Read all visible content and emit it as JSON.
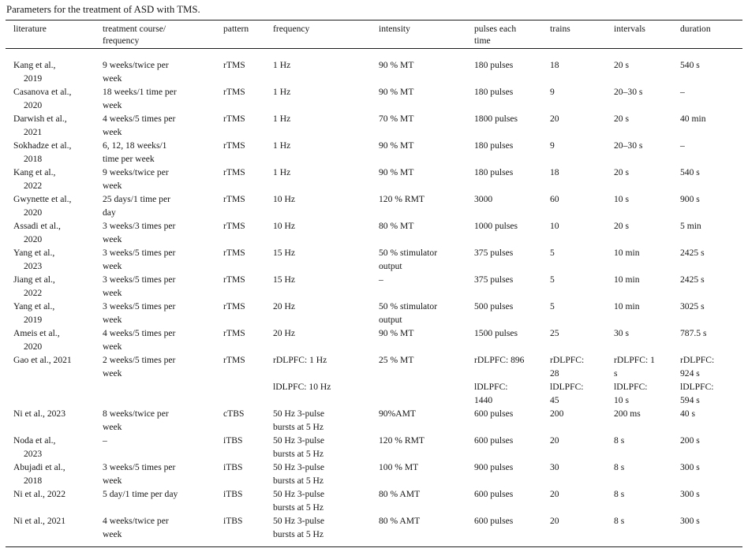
{
  "caption": "Parameters for the treatment of ASD with TMS.",
  "table": {
    "column_keys": [
      "literature",
      "course",
      "pattern",
      "frequency",
      "intensity",
      "pulses",
      "trains",
      "intervals",
      "duration"
    ],
    "columns": [
      "literature",
      "treatment course/\nfrequency",
      "pattern",
      "frequency",
      "intensity",
      "pulses each\ntime",
      "trains",
      "intervals",
      "duration"
    ],
    "rows": [
      [
        "Kang et al.,\n2019",
        "9 weeks/twice per\nweek",
        "rTMS",
        "1 Hz",
        "90 % MT",
        "180 pulses",
        "18",
        "20 s",
        "540 s"
      ],
      [
        "Casanova et al.,\n2020",
        "18 weeks/1 time per\nweek",
        "rTMS",
        "1 Hz",
        "90 % MT",
        "180 pulses",
        "9",
        "20–30 s",
        "–"
      ],
      [
        "Darwish et al.,\n2021",
        "4 weeks/5 times per\nweek",
        "rTMS",
        "1 Hz",
        "70 % MT",
        "1800 pulses",
        "20",
        "20 s",
        "40 min"
      ],
      [
        "Sokhadze et al.,\n2018",
        "6, 12, 18 weeks/1\ntime per week",
        "rTMS",
        "1 Hz",
        "90 % MT",
        "180 pulses",
        "9",
        "20–30 s",
        "–"
      ],
      [
        "Kang et al.,\n2022",
        "9 weeks/twice per\nweek",
        "rTMS",
        "1 Hz",
        "90 % MT",
        "180 pulses",
        "18",
        "20 s",
        "540 s"
      ],
      [
        "Gwynette et al.,\n2020",
        "25 days/1 time per\nday",
        "rTMS",
        "10 Hz",
        "120 % RMT",
        "3000",
        "60",
        "10 s",
        "900 s"
      ],
      [
        "Assadi et al.,\n2020",
        "3 weeks/3 times per\nweek",
        "rTMS",
        "10 Hz",
        "80 % MT",
        "1000 pulses",
        "10",
        "20 s",
        "5 min"
      ],
      [
        "Yang et al.,\n2023",
        "3 weeks/5 times per\nweek",
        "rTMS",
        "15 Hz",
        "50 % stimulator\noutput",
        "375 pulses",
        "5",
        "10 min",
        "2425 s"
      ],
      [
        "Jiang et al.,\n2022",
        "3 weeks/5 times per\nweek",
        "rTMS",
        "15 Hz",
        "–",
        "375 pulses",
        "5",
        "10 min",
        "2425 s"
      ],
      [
        "Yang et al.,\n2019",
        "3 weeks/5 times per\nweek",
        "rTMS",
        "20 Hz",
        "50 % stimulator\noutput",
        "500 pulses",
        "5",
        "10 min",
        "3025 s"
      ],
      [
        "Ameis et al.,\n2020",
        "4 weeks/5 times per\nweek",
        "rTMS",
        "20 Hz",
        "90 % MT",
        "1500 pulses",
        "25",
        "30 s",
        "787.5 s"
      ],
      [
        "Gao et al., 2021",
        "2 weeks/5 times per\nweek",
        "rTMS",
        "rDLPFC: 1 Hz\n\nlDLPFC: 10 Hz",
        "25 % MT",
        "rDLPFC: 896\n\nlDLPFC:\n1440",
        "rDLPFC:\n28\nlDLPFC:\n45",
        "rDLPFC: 1\ns\nlDLPFC:\n10 s",
        "rDLPFC:\n924 s\nlDLPFC:\n594 s"
      ],
      [
        "Ni et al., 2023",
        "8 weeks/twice per\nweek",
        "cTBS",
        "50 Hz 3-pulse\nbursts at 5 Hz",
        "90%AMT",
        "600 pulses",
        "200",
        "200 ms",
        "40 s"
      ],
      [
        "Noda et al.,\n2023",
        "–",
        "iTBS",
        "50 Hz 3-pulse\nbursts at 5 Hz",
        "120 % RMT",
        "600 pulses",
        "20",
        "8 s",
        "200 s"
      ],
      [
        "Abujadi et al.,\n2018",
        "3 weeks/5 times per\nweek",
        "iTBS",
        "50 Hz 3-pulse\nbursts at 5 Hz",
        "100 % MT",
        "900 pulses",
        "30",
        "8 s",
        "300 s"
      ],
      [
        "Ni et al., 2022",
        "5 day/1 time per day",
        "iTBS",
        "50 Hz 3-pulse\nbursts at 5 Hz",
        "80 % AMT",
        "600 pulses",
        "20",
        "8 s",
        "300 s"
      ],
      [
        "Ni et al., 2021",
        "4 weeks/twice per\nweek",
        "iTBS",
        "50 Hz 3-pulse\nbursts at 5 Hz",
        "80 % AMT",
        "600 pulses",
        "20",
        "8 s",
        "300 s"
      ]
    ]
  }
}
